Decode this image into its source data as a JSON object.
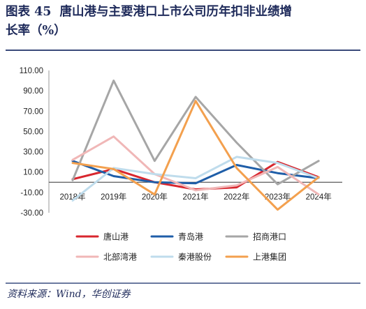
{
  "figure": {
    "label": "图表 45",
    "title_line1": "唐山港与主要港口上市公司历年扣非业绩增",
    "title_line2": "长率（%）",
    "source": "资料来源：Wind，华创证券"
  },
  "chart_data": {
    "type": "line",
    "title": "",
    "xlabel": "",
    "ylabel": "",
    "categories": [
      "2018年",
      "2019年",
      "2020年",
      "2021年",
      "2022年",
      "2023年",
      "2024年"
    ],
    "ylim": [
      -30,
      110
    ],
    "yticks": [
      "110.00",
      "90.00",
      "70.00",
      "50.00",
      "30.00",
      "10.00",
      "-10.00",
      "-30.00"
    ],
    "ytick_values": [
      110,
      90,
      70,
      50,
      30,
      10,
      -10,
      -30
    ],
    "grid": false,
    "legend_position": "bottom",
    "series": [
      {
        "name": "唐山港",
        "color": "#d8262e",
        "values": [
          3,
          13,
          0,
          -7,
          -5,
          20,
          5
        ]
      },
      {
        "name": "青岛港",
        "color": "#1f5ea8",
        "values": [
          21,
          6,
          0,
          -1,
          17,
          9,
          4
        ]
      },
      {
        "name": "招商港口",
        "color": "#a6a6a6",
        "values": [
          2,
          100,
          21,
          84,
          39,
          -2,
          21
        ]
      },
      {
        "name": "北部湾港",
        "color": "#f0b7b7",
        "values": [
          22,
          45,
          8,
          -8,
          -3,
          15,
          -12
        ]
      },
      {
        "name": "秦港股份",
        "color": "#bfdcec",
        "values": [
          -18,
          14,
          8,
          4,
          25,
          19,
          4
        ]
      },
      {
        "name": "上港集团",
        "color": "#f3a04e",
        "values": [
          19,
          13,
          -12,
          80,
          14,
          -27,
          5
        ]
      }
    ]
  }
}
